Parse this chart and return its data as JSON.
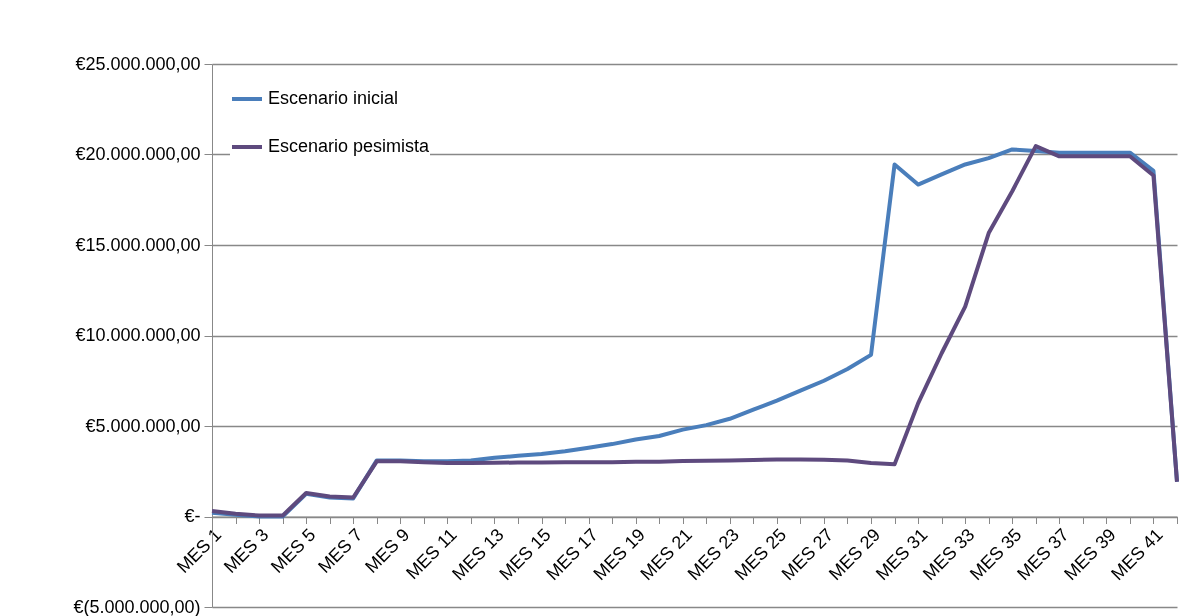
{
  "chart_data": {
    "type": "line",
    "categories": [
      "MES 1",
      null,
      "MES 3",
      null,
      "MES 5",
      null,
      "MES 7",
      null,
      "MES 9",
      null,
      "MES 11",
      null,
      "MES 13",
      null,
      "MES 15",
      null,
      "MES 17",
      null,
      "MES 19",
      null,
      "MES 21",
      null,
      "MES 23",
      null,
      "MES 25",
      null,
      "MES 27",
      null,
      "MES 29",
      null,
      "MES 31",
      null,
      "MES 33",
      null,
      "MES 35",
      null,
      "MES 37",
      null,
      "MES 39",
      null,
      "MES 41",
      null
    ],
    "series": [
      {
        "name": "Escenario inicial",
        "color": "#4a7ebb",
        "values": [
          200000,
          100000,
          0,
          0,
          1250000,
          1050000,
          1000000,
          3100000,
          3100000,
          3050000,
          3050000,
          3100000,
          3250000,
          3350000,
          3450000,
          3600000,
          3800000,
          4000000,
          4250000,
          4450000,
          4800000,
          5050000,
          5400000,
          5900000,
          6400000,
          6950000,
          7500000,
          8150000,
          8930000,
          19450000,
          18340000,
          18900000,
          19450000,
          19800000,
          20280000,
          20200000,
          20100000,
          20100000,
          20100000,
          20100000,
          19100000,
          1920000
        ]
      },
      {
        "name": "Escenario pesimista",
        "color": "#5e4a7e",
        "values": [
          300000,
          150000,
          50000,
          50000,
          1300000,
          1100000,
          1050000,
          3050000,
          3050000,
          3000000,
          2950000,
          2950000,
          2970000,
          2980000,
          2980000,
          3000000,
          3000000,
          3000000,
          3020000,
          3030000,
          3060000,
          3080000,
          3100000,
          3120000,
          3150000,
          3150000,
          3140000,
          3100000,
          2950000,
          2880000,
          6250000,
          9020000,
          11600000,
          15660000,
          17970000,
          20460000,
          19900000,
          19900000,
          19900000,
          19900000,
          18840000,
          1920000
        ]
      }
    ],
    "ylim": [
      -5000000,
      25000000
    ],
    "yticks": [
      {
        "value": -5000000,
        "label": "€(5.000.000,00)"
      },
      {
        "value": 0,
        "label": "€-"
      },
      {
        "value": 5000000,
        "label": "€5.000.000,00"
      },
      {
        "value": 10000000,
        "label": "€10.000.000,00"
      },
      {
        "value": 15000000,
        "label": "€15.000.000,00"
      },
      {
        "value": 20000000,
        "label": "€20.000.000,00"
      },
      {
        "value": 25000000,
        "label": "€25.000.000,00"
      }
    ],
    "grid": "y",
    "legend": "top left",
    "line_style": "solid"
  }
}
